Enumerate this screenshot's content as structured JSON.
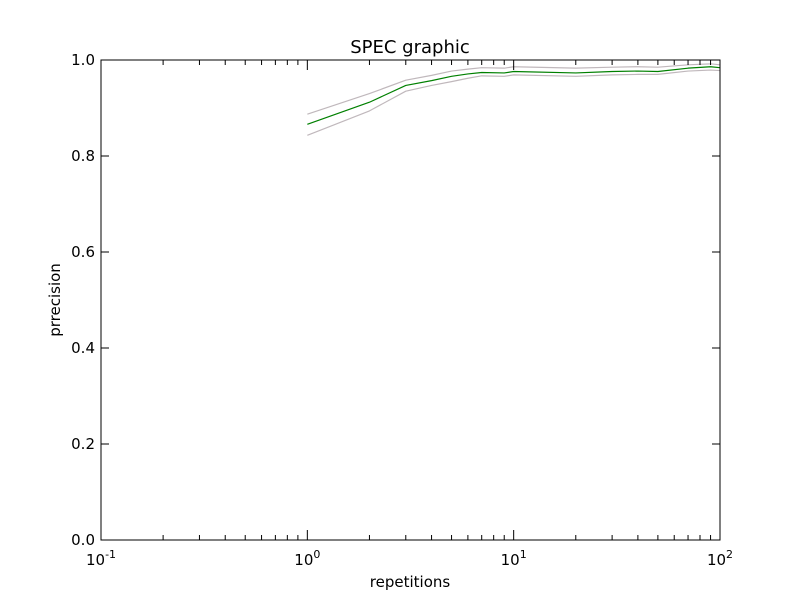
{
  "chart_data": {
    "type": "line",
    "title": "SPEC graphic",
    "xlabel": "repetitions",
    "ylabel": "prrecision",
    "xscale": "log",
    "xlim": [
      0.1,
      100
    ],
    "ylim": [
      0.0,
      1.0
    ],
    "grid": false,
    "legend": "none",
    "x_ticks": [
      {
        "value": 0.1,
        "base": "10",
        "exp": "-1"
      },
      {
        "value": 1,
        "base": "10",
        "exp": "0"
      },
      {
        "value": 10,
        "base": "10",
        "exp": "1"
      },
      {
        "value": 100,
        "base": "10",
        "exp": "2"
      }
    ],
    "y_ticks": [
      {
        "value": 0.0,
        "label": "0.0"
      },
      {
        "value": 0.2,
        "label": "0.2"
      },
      {
        "value": 0.4,
        "label": "0.4"
      },
      {
        "value": 0.6,
        "label": "0.6"
      },
      {
        "value": 0.8,
        "label": "0.8"
      },
      {
        "value": 1.0,
        "label": "1.0"
      }
    ],
    "x": [
      1,
      2,
      3,
      4,
      5,
      6,
      7,
      9,
      10,
      20,
      30,
      40,
      50,
      70,
      90,
      100
    ],
    "series": [
      {
        "role": "upper bound",
        "color": "#c0b8bc",
        "values": [
          0.887,
          0.93,
          0.958,
          0.968,
          0.977,
          0.981,
          0.984,
          0.983,
          0.986,
          0.983,
          0.985,
          0.986,
          0.985,
          0.99,
          0.992,
          0.99
        ]
      },
      {
        "role": "mean",
        "color": "#008000",
        "values": [
          0.866,
          0.912,
          0.947,
          0.957,
          0.966,
          0.971,
          0.974,
          0.973,
          0.976,
          0.973,
          0.976,
          0.977,
          0.976,
          0.983,
          0.986,
          0.984
        ]
      },
      {
        "role": "lower bound",
        "color": "#c0b8bc",
        "values": [
          0.843,
          0.894,
          0.935,
          0.947,
          0.955,
          0.962,
          0.967,
          0.966,
          0.969,
          0.966,
          0.969,
          0.97,
          0.97,
          0.977,
          0.979,
          0.978
        ]
      }
    ]
  }
}
